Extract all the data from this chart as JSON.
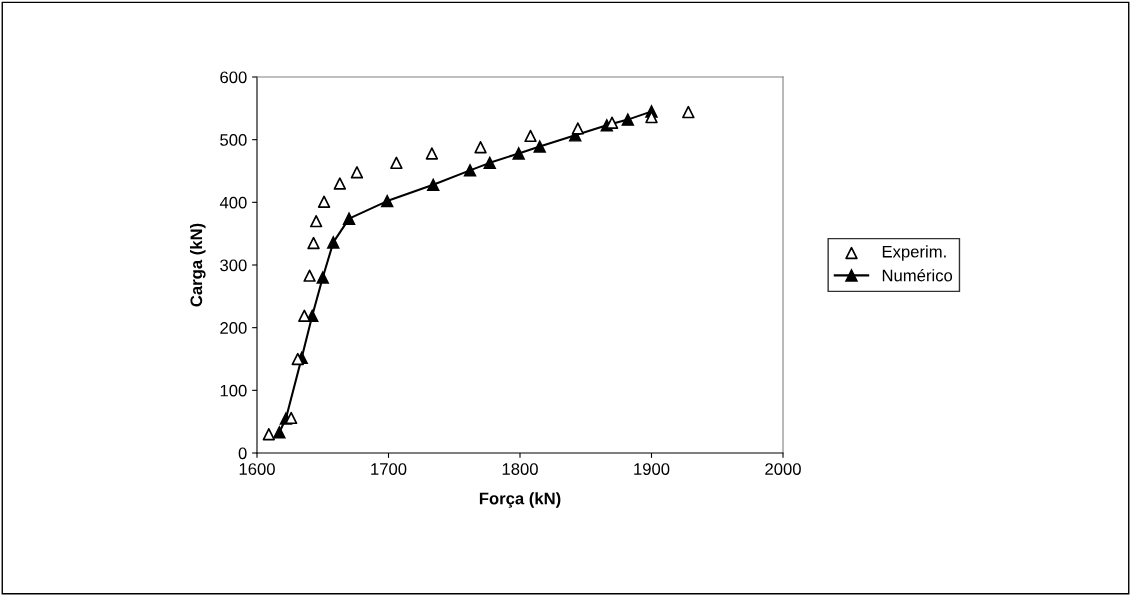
{
  "chart_data": {
    "type": "scatter",
    "xlabel": "Força (kN)",
    "ylabel": "Carga (kN)",
    "xlim": [
      1600,
      2000
    ],
    "xticks": [
      1600,
      1700,
      1800,
      1900,
      2000
    ],
    "ylim": [
      0,
      600
    ],
    "yticks": [
      0,
      100,
      200,
      300,
      400,
      500,
      600
    ],
    "grid": false,
    "legend": "right",
    "series": [
      {
        "name": "Experim.",
        "marker": "triangle",
        "color": "#000000",
        "x": [
          1609,
          1626,
          1631,
          1636,
          1640,
          1643,
          1645,
          1651,
          1663,
          1676,
          1706,
          1733,
          1770,
          1808,
          1844,
          1870,
          1900,
          1928
        ],
        "values": [
          30,
          56,
          150,
          219,
          283,
          335,
          370,
          401,
          430,
          448,
          463,
          478,
          488,
          506,
          518,
          527,
          536,
          544
        ]
      },
      {
        "name": "Numérico",
        "type": "line",
        "marker": "triangle",
        "line_style": "solid",
        "color": "#000000",
        "x": [
          1617,
          1622,
          1634,
          1642,
          1650,
          1658,
          1670,
          1699,
          1734,
          1762,
          1777,
          1799,
          1815,
          1842,
          1866,
          1882,
          1900
        ],
        "values": [
          33,
          55,
          152,
          219,
          280,
          336,
          374,
          402,
          428,
          451,
          463,
          478,
          489,
          507,
          523,
          532,
          545
        ]
      }
    ]
  }
}
